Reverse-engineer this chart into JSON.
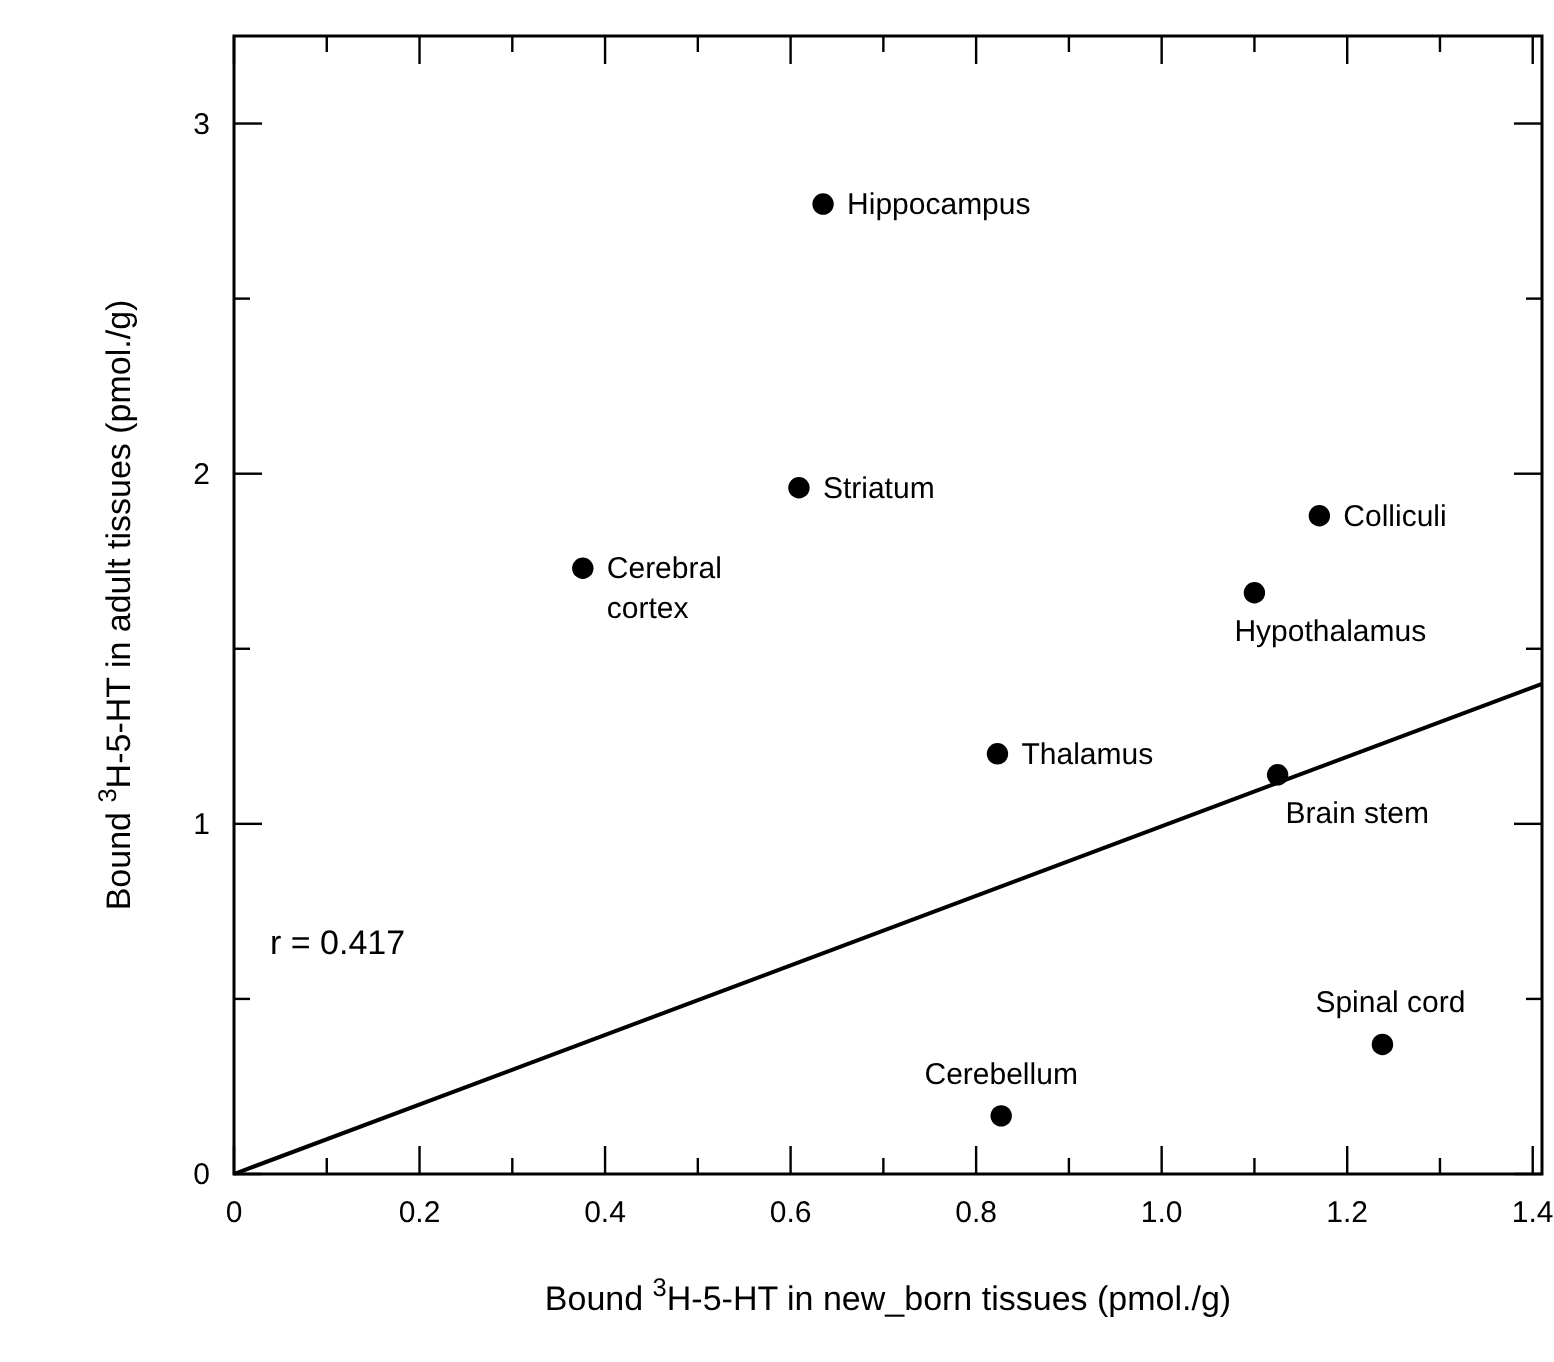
{
  "chart_data": {
    "type": "scatter",
    "xlabel": "Bound $^{3}$H-5-HT in new_born tissues (pmol./g)",
    "ylabel": "Bound $^{3}$H-5-HT in adult tissues (pmol./g)",
    "xlim": [
      0,
      1.41
    ],
    "ylim": [
      0,
      3.25
    ],
    "xticks": [
      0,
      {
        "value": 0.1,
        "label": null
      },
      0.2,
      {
        "value": 0.3,
        "label": null
      },
      0.4,
      {
        "value": 0.5,
        "label": null
      },
      0.6,
      {
        "value": 0.7,
        "label": null
      },
      0.8,
      {
        "value": 0.9,
        "label": null
      },
      {
        "value": 1,
        "label": "1.0"
      },
      {
        "value": 1.1,
        "label": null
      },
      1.2,
      {
        "value": 1.3,
        "label": null
      },
      1.4
    ],
    "yticks": [
      0,
      {
        "value": 0.5,
        "label": null
      },
      1,
      {
        "value": 1.5,
        "label": null
      },
      2,
      {
        "value": 2.5,
        "label": null
      },
      3
    ],
    "grid": false,
    "series": [
      {
        "marker": "circle",
        "color": "#000000",
        "x": [
          0.635,
          0.609,
          0.376,
          1.17,
          1.1,
          0.823,
          1.125,
          1.238,
          0.827
        ],
        "values": [
          2.77,
          1.96,
          1.73,
          1.88,
          1.66,
          1.2,
          1.14,
          0.37,
          0.166
        ]
      },
      {
        "type": "line",
        "marker": "none",
        "color": "#000000",
        "x": [
          0,
          1.41
        ],
        "values": [
          0,
          1.4
        ]
      }
    ],
    "annotations": [
      {
        "text": "Hippocampus",
        "x": 0.635,
        "y": 2.77
      },
      {
        "text": "Striatum",
        "x": 0.609,
        "y": 1.96
      },
      {
        "text": "Cerebral cortex",
        "x": 0.376,
        "y": 1.73
      },
      {
        "text": "Colliculi",
        "x": 1.17,
        "y": 1.88
      },
      {
        "text": "Hypothalamus",
        "x": 1.1,
        "y": 1.66
      },
      {
        "text": "Thalamus",
        "x": 0.823,
        "y": 1.2
      },
      {
        "text": "Brain stem",
        "x": 1.125,
        "y": 1.14
      },
      {
        "text": "Spinal cord",
        "x": 1.238,
        "y": 0.37
      },
      {
        "text": "Cerebellum",
        "x": 0.827,
        "y": 0.166
      },
      "r = 0.417"
    ]
  }
}
